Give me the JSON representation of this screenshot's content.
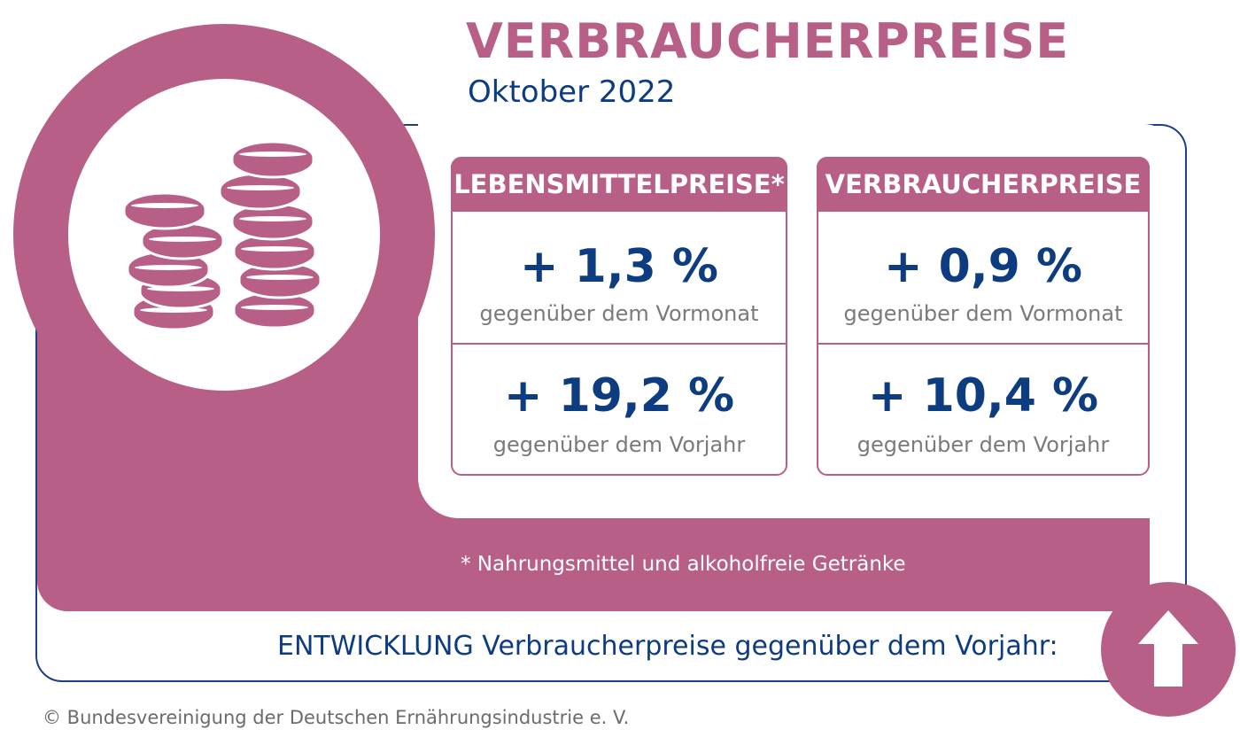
{
  "header": {
    "title": "VERBRAUCHERPREISE",
    "subtitle": "Oktober 2022"
  },
  "cards": [
    {
      "heading": "LEBENSMITTELPREISE*",
      "month_value": "+ 1,3 %",
      "month_label": "gegenüber dem Vormonat",
      "year_value": "+ 19,2 %",
      "year_label": "gegenüber dem Vorjahr"
    },
    {
      "heading": "VERBRAUCHERPREISE",
      "month_value": "+ 0,9 %",
      "month_label": "gegenüber dem Vormonat",
      "year_value": "+ 10,4 %",
      "year_label": "gegenüber dem Vorjahr"
    }
  ],
  "footnote": "* Nahrungsmittel und alkoholfreie Getränke",
  "development_label": "ENTWICKLUNG Verbraucherpreise gegenüber dem Vorjahr:",
  "copyright": "© Bundesvereinigung der Deutschen Ernährungsindustrie e. V.",
  "icons": {
    "main": "coin-stacks-icon",
    "trend": "arrow-up-icon"
  },
  "colors": {
    "accent": "#b75f87",
    "text_primary": "#0d3c80",
    "text_muted": "#7a7a7a"
  }
}
